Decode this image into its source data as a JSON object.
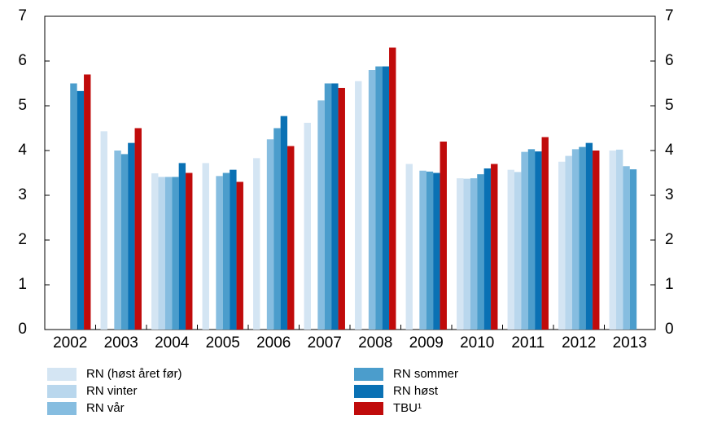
{
  "chart_data": {
    "type": "bar",
    "categories": [
      "2002",
      "2003",
      "2004",
      "2005",
      "2006",
      "2007",
      "2008",
      "2009",
      "2010",
      "2011",
      "2012",
      "2013"
    ],
    "series": [
      {
        "name": "RN (høst året før)",
        "color": "#d4e5f3",
        "values": [
          null,
          4.43,
          3.49,
          3.72,
          3.83,
          4.62,
          5.55,
          3.7,
          3.38,
          3.57,
          3.75,
          4.0
        ]
      },
      {
        "name": "RN vinter",
        "color": "#b9d7ed",
        "values": [
          null,
          null,
          3.41,
          null,
          null,
          null,
          null,
          null,
          3.37,
          3.52,
          3.88,
          4.02
        ]
      },
      {
        "name": "RN vår",
        "color": "#86bde0",
        "values": [
          null,
          4.0,
          3.41,
          3.43,
          4.25,
          5.12,
          5.8,
          3.55,
          3.38,
          3.97,
          4.03,
          3.65
        ]
      },
      {
        "name": "RN sommer",
        "color": "#4b9dcc",
        "values": [
          5.5,
          3.92,
          3.41,
          3.5,
          4.5,
          5.5,
          5.88,
          3.53,
          3.47,
          4.03,
          4.08,
          3.58
        ]
      },
      {
        "name": "RN høst",
        "color": "#0a71b4",
        "values": [
          5.33,
          4.17,
          3.72,
          3.57,
          4.77,
          5.5,
          5.88,
          3.5,
          3.6,
          3.98,
          4.17,
          null
        ]
      },
      {
        "name": "TBU¹",
        "color": "#c00b0b",
        "values": [
          5.7,
          4.5,
          3.5,
          3.3,
          4.1,
          5.4,
          6.3,
          4.2,
          3.7,
          4.3,
          4.0,
          null
        ]
      }
    ],
    "ylim": [
      0,
      7
    ],
    "yticks": [
      0,
      1,
      2,
      3,
      4,
      5,
      6,
      7
    ],
    "y2lim": [
      0,
      7
    ],
    "y2ticks": [
      0,
      1,
      2,
      3,
      4,
      5,
      6,
      7
    ]
  }
}
